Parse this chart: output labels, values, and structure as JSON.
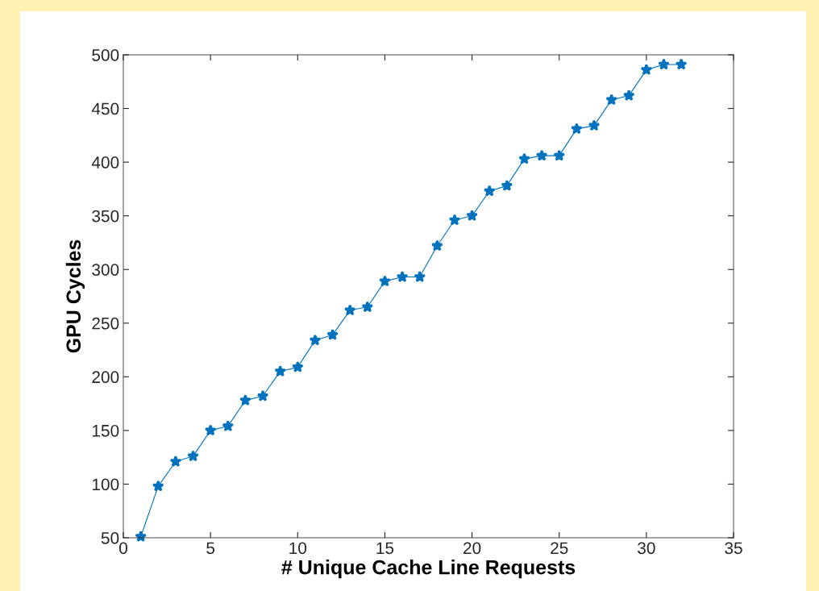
{
  "chart_data": {
    "type": "line",
    "xlabel": "# Unique Cache Line Requests",
    "ylabel": "GPU Cycles",
    "x": [
      1,
      2,
      3,
      4,
      5,
      6,
      7,
      8,
      9,
      10,
      11,
      12,
      13,
      14,
      15,
      16,
      17,
      18,
      19,
      20,
      21,
      22,
      23,
      24,
      25,
      26,
      27,
      28,
      29,
      30,
      31,
      32
    ],
    "series": [
      {
        "color": "#0072bd",
        "values": [
          51,
          98,
          121,
          126,
          150,
          154,
          178,
          182,
          205,
          209,
          234,
          239,
          262,
          265,
          289,
          293,
          293,
          322,
          346,
          350,
          373,
          378,
          403,
          406,
          406,
          431,
          434,
          458,
          462,
          486,
          491,
          491
        ]
      }
    ],
    "xlim": [
      0,
      35
    ],
    "xticks": [
      0,
      5,
      10,
      15,
      20,
      25,
      30,
      35
    ],
    "ylim": [
      50,
      500
    ],
    "yticks": [
      50,
      100,
      150,
      200,
      250,
      300,
      350,
      400,
      450,
      500
    ],
    "grid": false,
    "legend": false,
    "marker": "star",
    "line_style": "solid"
  }
}
